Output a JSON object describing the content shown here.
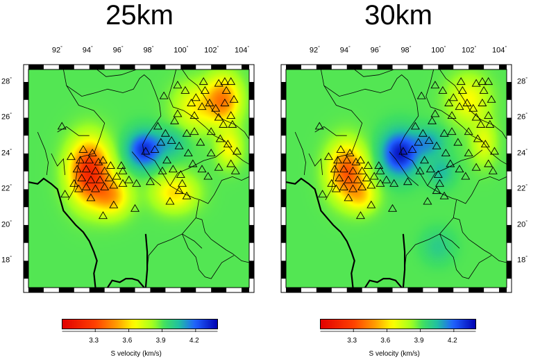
{
  "panels": [
    {
      "id": "left",
      "title": "25km",
      "anomalies": [
        {
          "lon": 94.0,
          "lat": 23.0,
          "value": 3.2,
          "sx": 1.3,
          "sy": 1.7
        },
        {
          "lon": 95.5,
          "lat": 21.6,
          "value": 3.55,
          "sx": 1.2,
          "sy": 1.1
        },
        {
          "lon": 99.6,
          "lat": 21.8,
          "value": 3.6,
          "sx": 1.4,
          "sy": 1.0
        },
        {
          "lon": 102.8,
          "lat": 27.0,
          "value": 3.45,
          "sx": 1.1,
          "sy": 1.3
        },
        {
          "lon": 101.0,
          "lat": 26.6,
          "value": 3.65,
          "sx": 1.4,
          "sy": 1.3
        },
        {
          "lon": 103.2,
          "lat": 24.3,
          "value": 3.65,
          "sx": 0.8,
          "sy": 1.0
        },
        {
          "lon": 97.6,
          "lat": 24.2,
          "value": 4.3,
          "sx": 1.1,
          "sy": 1.0
        },
        {
          "lon": 99.4,
          "lat": 24.6,
          "value": 4.05,
          "sx": 1.0,
          "sy": 0.8
        }
      ]
    },
    {
      "id": "right",
      "title": "30km",
      "anomalies": [
        {
          "lon": 94.0,
          "lat": 23.0,
          "value": 3.35,
          "sx": 1.2,
          "sy": 1.5
        },
        {
          "lon": 95.0,
          "lat": 21.6,
          "value": 3.65,
          "sx": 1.0,
          "sy": 0.9
        },
        {
          "lon": 102.0,
          "lat": 27.0,
          "value": 3.65,
          "sx": 1.3,
          "sy": 1.3
        },
        {
          "lon": 103.0,
          "lat": 24.6,
          "value": 3.7,
          "sx": 0.8,
          "sy": 1.2
        },
        {
          "lon": 97.5,
          "lat": 24.0,
          "value": 4.35,
          "sx": 1.2,
          "sy": 1.2
        },
        {
          "lon": 99.4,
          "lat": 24.6,
          "value": 4.1,
          "sx": 1.0,
          "sy": 0.8
        },
        {
          "lon": 100.2,
          "lat": 23.0,
          "value": 4.05,
          "sx": 0.8,
          "sy": 0.8
        },
        {
          "lon": 100.0,
          "lat": 18.8,
          "value": 4.0,
          "sx": 1.0,
          "sy": 0.9
        }
      ]
    }
  ],
  "map": {
    "lon_range": [
      90.0,
      104.5
    ],
    "lat_range": [
      16.5,
      28.7
    ],
    "lon_ticks": [
      92,
      94,
      96,
      98,
      100,
      102,
      104
    ],
    "lat_ticks": [
      18,
      20,
      22,
      24,
      26,
      28
    ],
    "degree_symbol": "°",
    "background_value": 3.9
  },
  "colorbar": {
    "range": [
      3.0,
      4.4
    ],
    "ticks": [
      "3.3",
      "3.6",
      "3.9",
      "4.2"
    ],
    "label": "S velocity (km/s)"
  },
  "palette": [
    {
      "v": 3.0,
      "color": "#e00000"
    },
    {
      "v": 3.3,
      "color": "#ff4000"
    },
    {
      "v": 3.5,
      "color": "#ffa000"
    },
    {
      "v": 3.65,
      "color": "#ffff00"
    },
    {
      "v": 3.82,
      "color": "#a0ff20"
    },
    {
      "v": 3.92,
      "color": "#40e060"
    },
    {
      "v": 4.05,
      "color": "#20c0a0"
    },
    {
      "v": 4.2,
      "color": "#2060ff"
    },
    {
      "v": 4.4,
      "color": "#0000b0"
    }
  ],
  "stations": [
    [
      93.6,
      24.2
    ],
    [
      94.2,
      24.0
    ],
    [
      93.4,
      23.6
    ],
    [
      94.0,
      23.6
    ],
    [
      94.6,
      23.5
    ],
    [
      93.2,
      23.1
    ],
    [
      93.8,
      23.1
    ],
    [
      94.4,
      23.0
    ],
    [
      95.0,
      23.0
    ],
    [
      93.5,
      22.6
    ],
    [
      94.1,
      22.5
    ],
    [
      94.7,
      22.5
    ],
    [
      95.3,
      22.6
    ],
    [
      93.0,
      22.3
    ],
    [
      93.8,
      22.1
    ],
    [
      94.4,
      22.0
    ],
    [
      95.0,
      22.1
    ],
    [
      95.6,
      22.2
    ],
    [
      96.2,
      22.3
    ],
    [
      94.9,
      23.6
    ],
    [
      95.4,
      23.3
    ],
    [
      96.2,
      23.0
    ],
    [
      93.3,
      22.0
    ],
    [
      94.1,
      21.5
    ],
    [
      95.6,
      21.1
    ],
    [
      94.9,
      20.5
    ],
    [
      97.0,
      20.9
    ],
    [
      96.6,
      22.5
    ],
    [
      97.1,
      22.3
    ],
    [
      95.8,
      22.7
    ],
    [
      96.1,
      23.3
    ],
    [
      92.2,
      25.5
    ],
    [
      92.8,
      23.8
    ],
    [
      92.4,
      21.7
    ],
    [
      97.7,
      24.1
    ],
    [
      98.3,
      24.2
    ],
    [
      98.7,
      24.6
    ],
    [
      99.0,
      25.1
    ],
    [
      99.4,
      24.7
    ],
    [
      99.9,
      24.4
    ],
    [
      98.5,
      25.5
    ],
    [
      99.6,
      25.8
    ],
    [
      99.8,
      26.2
    ],
    [
      100.4,
      25.1
    ],
    [
      100.9,
      25.2
    ],
    [
      100.5,
      24.0
    ],
    [
      99.1,
      23.6
    ],
    [
      98.8,
      23.0
    ],
    [
      99.5,
      23.1
    ],
    [
      100.0,
      22.8
    ],
    [
      100.1,
      22.3
    ],
    [
      99.9,
      21.9
    ],
    [
      100.4,
      21.6
    ],
    [
      100.8,
      23.4
    ],
    [
      101.4,
      23.1
    ],
    [
      101.8,
      22.7
    ],
    [
      102.5,
      23.2
    ],
    [
      103.3,
      23.4
    ],
    [
      103.7,
      24.1
    ],
    [
      103.1,
      24.5
    ],
    [
      102.6,
      24.8
    ],
    [
      102.0,
      25.2
    ],
    [
      101.3,
      24.6
    ],
    [
      100.9,
      26.1
    ],
    [
      101.4,
      26.6
    ],
    [
      101.0,
      27.1
    ],
    [
      101.9,
      26.8
    ],
    [
      102.3,
      26.5
    ],
    [
      102.9,
      26.8
    ],
    [
      103.5,
      27.0
    ],
    [
      103.0,
      27.5
    ],
    [
      102.5,
      27.9
    ],
    [
      102.9,
      28.0
    ],
    [
      103.3,
      28.0
    ],
    [
      101.6,
      27.5
    ],
    [
      101.5,
      28.0
    ],
    [
      100.3,
      27.5
    ],
    [
      99.8,
      27.8
    ],
    [
      103.4,
      25.6
    ],
    [
      102.8,
      25.6
    ],
    [
      102.5,
      26.0
    ],
    [
      103.3,
      26.1
    ],
    [
      103.6,
      23.0
    ],
    [
      102.0,
      24.0
    ],
    [
      100.7,
      26.8
    ],
    [
      98.9,
      27.2
    ],
    [
      99.3,
      21.3
    ],
    [
      98.0,
      22.4
    ]
  ],
  "coast": [
    [
      [
        90.0,
        22.4
      ],
      [
        90.6,
        22.3
      ],
      [
        91.0,
        22.6
      ],
      [
        91.5,
        22.3
      ],
      [
        91.9,
        22.0
      ],
      [
        92.1,
        21.4
      ],
      [
        92.3,
        20.8
      ],
      [
        92.8,
        20.3
      ],
      [
        93.1,
        20.0
      ],
      [
        93.6,
        19.6
      ],
      [
        94.0,
        19.1
      ],
      [
        94.3,
        18.5
      ],
      [
        94.5,
        18.0
      ],
      [
        94.3,
        17.3
      ],
      [
        94.4,
        16.5
      ]
    ],
    [
      [
        95.2,
        16.5
      ],
      [
        95.5,
        16.9
      ],
      [
        96.0,
        16.8
      ],
      [
        96.4,
        17.0
      ],
      [
        96.8,
        17.0
      ],
      [
        97.2,
        16.9
      ],
      [
        97.6,
        16.5
      ]
    ],
    [
      [
        97.7,
        16.5
      ],
      [
        97.8,
        17.5
      ],
      [
        97.8,
        18.5
      ],
      [
        97.7,
        19.5
      ]
    ]
  ],
  "borders": [
    [
      [
        92.3,
        28.7
      ],
      [
        92.5,
        27.8
      ],
      [
        93.5,
        27.2
      ],
      [
        94.4,
        27.4
      ],
      [
        95.2,
        27.6
      ],
      [
        96.2,
        27.4
      ],
      [
        96.9,
        27.6
      ],
      [
        97.3,
        28.2
      ],
      [
        97.6,
        28.4
      ],
      [
        98.0,
        28.1
      ],
      [
        98.3,
        27.5
      ],
      [
        98.6,
        26.8
      ],
      [
        98.7,
        26.1
      ],
      [
        98.2,
        25.5
      ],
      [
        97.8,
        25.0
      ],
      [
        97.5,
        24.5
      ],
      [
        97.6,
        23.9
      ],
      [
        98.3,
        23.6
      ],
      [
        98.8,
        22.9
      ],
      [
        99.3,
        22.2
      ],
      [
        100.1,
        21.8
      ],
      [
        100.9,
        21.5
      ],
      [
        101.3,
        21.4
      ],
      [
        101.8,
        21.2
      ],
      [
        102.2,
        21.7
      ],
      [
        102.7,
        22.5
      ],
      [
        103.4,
        22.7
      ],
      [
        104.0,
        22.5
      ],
      [
        104.5,
        22.7
      ]
    ],
    [
      [
        92.5,
        27.8
      ],
      [
        93.3,
        26.7
      ],
      [
        94.3,
        26.4
      ],
      [
        95.0,
        25.7
      ],
      [
        94.7,
        24.9
      ],
      [
        94.3,
        24.0
      ],
      [
        93.4,
        23.8
      ],
      [
        93.2,
        23.0
      ],
      [
        93.0,
        22.0
      ],
      [
        92.6,
        21.4
      ]
    ],
    [
      [
        91.9,
        25.2
      ],
      [
        92.5,
        25.5
      ],
      [
        93.3,
        25.0
      ],
      [
        94.0,
        25.0
      ]
    ],
    [
      [
        91.5,
        24.0
      ],
      [
        91.9,
        23.3
      ],
      [
        92.3,
        23.7
      ],
      [
        92.4,
        22.8
      ]
    ],
    [
      [
        91.2,
        22.8
      ],
      [
        91.3,
        23.5
      ],
      [
        91.1,
        24.2
      ],
      [
        90.6,
        25.2
      ]
    ],
    [
      [
        101.2,
        21.4
      ],
      [
        101.0,
        20.4
      ],
      [
        100.6,
        20.0
      ],
      [
        100.1,
        19.5
      ],
      [
        99.4,
        19.2
      ],
      [
        98.5,
        18.9
      ],
      [
        97.9,
        18.3
      ],
      [
        97.8,
        17.6
      ]
    ],
    [
      [
        101.0,
        20.4
      ],
      [
        101.4,
        20.3
      ],
      [
        101.6,
        19.6
      ],
      [
        102.0,
        19.2
      ],
      [
        103.0,
        18.6
      ],
      [
        103.4,
        18.4
      ],
      [
        104.0,
        18.0
      ],
      [
        104.5,
        17.9
      ]
    ],
    [
      [
        100.1,
        19.5
      ],
      [
        100.5,
        18.7
      ],
      [
        101.0,
        18.2
      ],
      [
        101.2,
        17.5
      ],
      [
        101.6,
        17.1
      ],
      [
        102.0,
        17.0
      ],
      [
        102.7,
        17.9
      ],
      [
        103.5,
        18.3
      ]
    ],
    [
      [
        100.1,
        28.7
      ],
      [
        100.5,
        28.2
      ],
      [
        101.1,
        27.8
      ],
      [
        101.7,
        27.0
      ],
      [
        102.1,
        26.4
      ],
      [
        102.8,
        25.9
      ],
      [
        103.6,
        25.6
      ],
      [
        104.2,
        25.2
      ],
      [
        104.5,
        24.8
      ]
    ],
    [
      [
        99.7,
        28.7
      ],
      [
        99.5,
        28.0
      ],
      [
        99.2,
        27.2
      ],
      [
        99.5,
        26.6
      ],
      [
        100.2,
        26.4
      ],
      [
        100.9,
        26.0
      ],
      [
        101.6,
        25.5
      ],
      [
        102.2,
        25.0
      ],
      [
        102.9,
        24.7
      ],
      [
        103.5,
        24.0
      ],
      [
        104.1,
        23.6
      ],
      [
        104.5,
        23.4
      ]
    ],
    [
      [
        99.3,
        22.2
      ],
      [
        99.8,
        22.9
      ],
      [
        100.6,
        23.2
      ],
      [
        101.5,
        23.6
      ],
      [
        102.3,
        23.8
      ],
      [
        102.9,
        24.2
      ]
    ],
    [
      [
        96.8,
        24.1
      ],
      [
        97.2,
        23.7
      ],
      [
        98.0,
        22.7
      ],
      [
        98.7,
        22.2
      ]
    ],
    [
      [
        94.5,
        28.7
      ],
      [
        95.1,
        28.3
      ],
      [
        96.1,
        28.4
      ],
      [
        97.1,
        28.7
      ]
    ],
    [
      [
        100.1,
        19.5
      ],
      [
        100.9,
        19.1
      ],
      [
        101.4,
        18.7
      ]
    ]
  ]
}
